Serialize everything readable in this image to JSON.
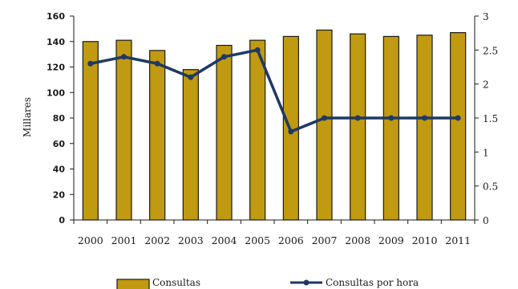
{
  "chart_data": {
    "type": "bar",
    "categories": [
      "2000",
      "2001",
      "2002",
      "2003",
      "2004",
      "2005",
      "2006",
      "2007",
      "2008",
      "2009",
      "2010",
      "2011"
    ],
    "series": [
      {
        "name": "Consultas",
        "type": "bar",
        "axis": "left",
        "values": [
          140,
          141,
          133,
          118,
          137,
          141,
          144,
          149,
          146,
          144,
          145,
          147
        ]
      },
      {
        "name": "Consultas por hora",
        "type": "line",
        "axis": "right",
        "values": [
          2.3,
          2.4,
          2.3,
          2.1,
          2.4,
          2.5,
          1.3,
          1.5,
          1.5,
          1.5,
          1.5,
          1.5
        ]
      }
    ],
    "ylabel": "Millares",
    "ylim": [
      0,
      160
    ],
    "yticks": [
      0,
      20,
      40,
      60,
      80,
      100,
      120,
      140,
      160
    ],
    "ylim_right": [
      0,
      3
    ],
    "yticks_right": [
      "0",
      "0.5",
      "1",
      "1.5",
      "2",
      "2.5",
      "3"
    ],
    "legend": {
      "position": "bottom"
    },
    "grid": false,
    "colors": {
      "bar": "#C09A10",
      "bar_edge": "#1a1a1a",
      "line": "#1F3864",
      "axis": "#1a1a1a"
    }
  }
}
